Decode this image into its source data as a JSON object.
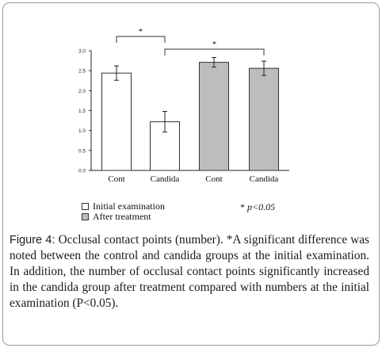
{
  "chart_data": {
    "type": "bar",
    "categories": [
      "Cont",
      "Candida",
      "Cont",
      "Candida"
    ],
    "values": [
      2.44,
      1.22,
      2.71,
      2.56
    ],
    "errors": [
      0.18,
      0.26,
      0.12,
      0.18
    ],
    "groups": [
      "Initial examination",
      "Initial examination",
      "After treatment",
      "After treatment"
    ],
    "colors": {
      "Initial examination": "#ffffff",
      "After treatment": "#bdbdbd"
    },
    "y_ticks": [
      "0.0",
      "0.5",
      "1.0",
      "1.5",
      "2.0",
      "2.5",
      "3.0"
    ],
    "ylim": [
      0,
      3.0
    ],
    "grid": false,
    "legend_position": "bottom-left",
    "significance": [
      {
        "from": 0,
        "to": 1,
        "label": "*"
      },
      {
        "from": 1,
        "to": 3,
        "label": "*"
      }
    ]
  },
  "legend": {
    "items": [
      {
        "label": "Initial examination",
        "color": "#ffffff"
      },
      {
        "label": "After treatment",
        "color": "#bdbdbd"
      }
    ],
    "significance_symbol": "*",
    "significance_text": "p<0.05"
  },
  "caption": {
    "label": "Figure 4:",
    "text": " Occlusal contact points (number). *A significant difference was noted between the control and candida groups at the initial examination. In addition, the number of occlusal contact points significantly increased in the candida group after treatment compared with numbers at the initial examination (P<0.05)."
  }
}
